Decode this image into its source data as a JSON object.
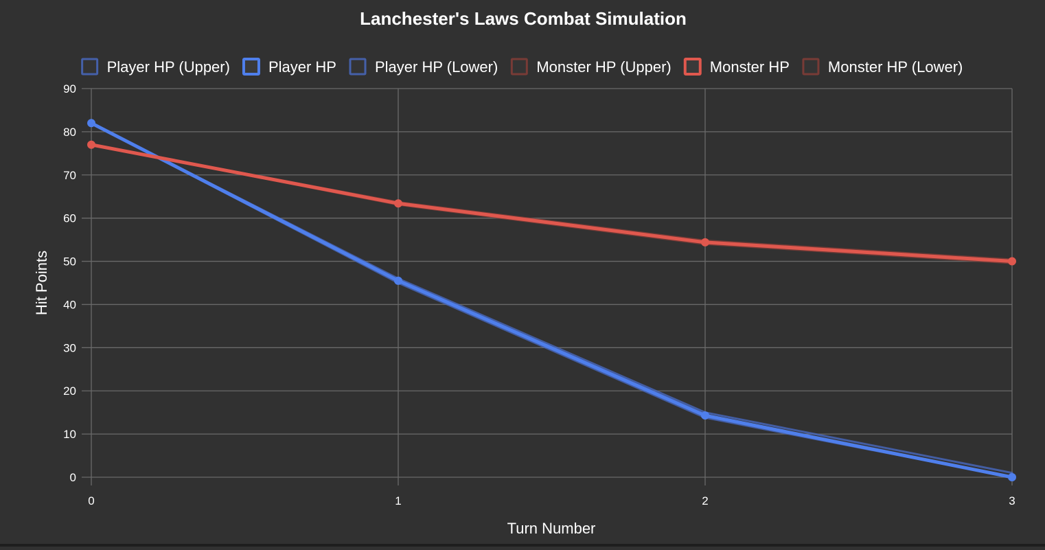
{
  "chart_data": {
    "type": "line",
    "title": "Lanchester's Laws Combat Simulation",
    "xlabel": "Turn Number",
    "ylabel": "Hit Points",
    "x": [
      0,
      1,
      2,
      3
    ],
    "xlim": [
      0,
      3
    ],
    "ylim": [
      0,
      90
    ],
    "yticks": [
      0,
      10,
      20,
      30,
      40,
      50,
      60,
      70,
      80,
      90
    ],
    "grid": true,
    "legend_position": "top",
    "series": [
      {
        "name": "Player HP (Upper)",
        "values": [
          82,
          46,
          15,
          1
        ],
        "color": "#4a6cc8",
        "role": "band"
      },
      {
        "name": "Player HP",
        "values": [
          82,
          45.5,
          14.3,
          0
        ],
        "color": "#4f7fec",
        "role": "main"
      },
      {
        "name": "Player HP (Lower)",
        "values": [
          82,
          45,
          13.8,
          0
        ],
        "color": "#4a6cc8",
        "role": "band"
      },
      {
        "name": "Monster HP (Upper)",
        "values": [
          77,
          63.7,
          54.8,
          50.4
        ],
        "color": "#8a3e38",
        "role": "band"
      },
      {
        "name": "Monster HP",
        "values": [
          77,
          63.4,
          54.4,
          50
        ],
        "color": "#e0584e",
        "role": "main"
      },
      {
        "name": "Monster HP (Lower)",
        "values": [
          77,
          63.1,
          54,
          49.6
        ],
        "color": "#8a3e38",
        "role": "band"
      }
    ]
  }
}
